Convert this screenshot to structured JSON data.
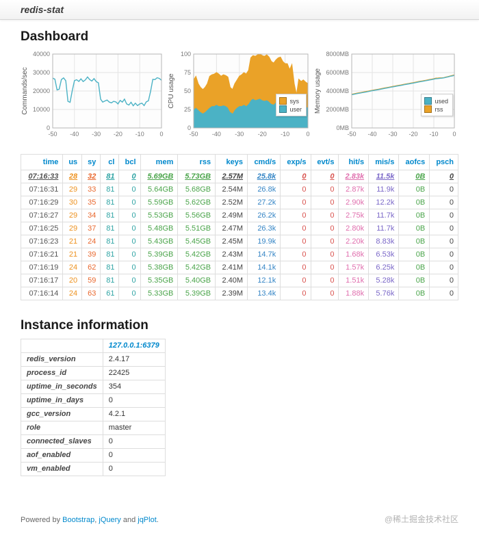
{
  "navbar": {
    "brand": "redis-stat"
  },
  "sections": {
    "dashboard_title": "Dashboard",
    "instance_title": "Instance information"
  },
  "chart_data": [
    {
      "type": "line",
      "ylabel": "Commands/sec",
      "xlim": [
        -50,
        0
      ],
      "ylim": [
        0,
        40000
      ],
      "x_ticks": [
        -50,
        -40,
        -30,
        -20,
        -10,
        0
      ],
      "y_ticks": [
        0,
        10000,
        20000,
        30000,
        40000
      ],
      "y_suffix": "",
      "grid": true,
      "series": [
        {
          "name": "cmd/s",
          "color": "#4bb2c5",
          "values": [
            27000,
            26400,
            20600,
            21000,
            26200,
            27100,
            25600,
            14400,
            13900,
            20200,
            25600,
            26100,
            25200,
            26600,
            25100,
            26000,
            27600,
            26200,
            25400,
            26700,
            25100,
            24400,
            15600,
            14000,
            14600,
            15100,
            14000,
            13600,
            14400,
            14100,
            13000,
            14900,
            14000,
            15600,
            13000,
            12400,
            13900,
            12000,
            13400,
            12100,
            13000,
            13400,
            12100,
            14100,
            14700,
            19900,
            26300,
            26200,
            27200,
            26800,
            25800
          ]
        }
      ]
    },
    {
      "type": "stacked-area",
      "ylabel": "CPU usage",
      "xlim": [
        -50,
        0
      ],
      "ylim": [
        0,
        100
      ],
      "x_ticks": [
        -50,
        -40,
        -30,
        -20,
        -10,
        0
      ],
      "y_ticks": [
        0,
        25,
        50,
        75,
        100
      ],
      "y_suffix": "",
      "grid": true,
      "series": [
        {
          "name": "user",
          "color": "#4bb2c5",
          "values": [
            25,
            28,
            25,
            22,
            20,
            22,
            25,
            28,
            30,
            30,
            32,
            30,
            30,
            31,
            30,
            28,
            22,
            20,
            25,
            28,
            30,
            30,
            32,
            30,
            33,
            38,
            40,
            38,
            39,
            40,
            38,
            37,
            38,
            36,
            33,
            32,
            35,
            36,
            35,
            32,
            24,
            24,
            20,
            24,
            21,
            21,
            29,
            29,
            30,
            29,
            28
          ]
        },
        {
          "name": "sys",
          "color": "#eaa228",
          "values": [
            40,
            42,
            35,
            33,
            32,
            33,
            35,
            42,
            42,
            43,
            43,
            43,
            40,
            41,
            41,
            41,
            33,
            32,
            35,
            37,
            40,
            42,
            43,
            43,
            45,
            57,
            58,
            59,
            60,
            60,
            60,
            60,
            61,
            60,
            57,
            56,
            57,
            59,
            61,
            58,
            63,
            63,
            59,
            62,
            39,
            24,
            37,
            34,
            35,
            33,
            32
          ]
        }
      ],
      "legend": {
        "position": "right",
        "entries": [
          {
            "label": "sys",
            "color": "#eaa228"
          },
          {
            "label": "user",
            "color": "#4bb2c5"
          }
        ]
      }
    },
    {
      "type": "line",
      "ylabel": "Memory usage",
      "xlim": [
        -50,
        0
      ],
      "ylim": [
        0,
        8000
      ],
      "x_ticks": [
        -50,
        -40,
        -30,
        -20,
        -10,
        0
      ],
      "y_ticks": [
        0,
        2000,
        4000,
        6000,
        8000
      ],
      "y_suffix": "MB",
      "grid": true,
      "series": [
        {
          "name": "rss",
          "color": "#eaa228",
          "values": [
            3645,
            3690,
            3735,
            3775,
            3815,
            3860,
            3905,
            3945,
            3985,
            4030,
            4075,
            4115,
            4155,
            4195,
            4240,
            4285,
            4325,
            4365,
            4405,
            4450,
            4495,
            4535,
            4575,
            4615,
            4655,
            4700,
            4745,
            4785,
            4825,
            4865,
            4905,
            4950,
            4995,
            5035,
            5075,
            5115,
            5155,
            5200,
            5245,
            5285,
            5325,
            5390,
            5400,
            5420,
            5420,
            5450,
            5510,
            5560,
            5620,
            5680,
            5730
          ]
        },
        {
          "name": "used",
          "color": "#4bb2c5",
          "values": [
            3600,
            3645,
            3690,
            3730,
            3770,
            3815,
            3860,
            3900,
            3940,
            3985,
            4030,
            4070,
            4110,
            4150,
            4195,
            4240,
            4280,
            4320,
            4360,
            4405,
            4450,
            4490,
            4530,
            4570,
            4610,
            4655,
            4700,
            4740,
            4780,
            4820,
            4860,
            4905,
            4950,
            4990,
            5030,
            5070,
            5110,
            5155,
            5200,
            5240,
            5280,
            5330,
            5350,
            5380,
            5390,
            5430,
            5480,
            5530,
            5590,
            5640,
            5690
          ]
        }
      ],
      "legend": {
        "position": "right",
        "entries": [
          {
            "label": "used",
            "color": "#4bb2c5"
          },
          {
            "label": "rss",
            "color": "#eaa228"
          }
        ]
      }
    }
  ],
  "stats_table": {
    "header_color": "#0088cc",
    "columns": [
      {
        "label": "time",
        "color": "#555555"
      },
      {
        "label": "us",
        "color": "#ed9220"
      },
      {
        "label": "sy",
        "color": "#e9682e"
      },
      {
        "label": "cl",
        "color": "#2fa4a4"
      },
      {
        "label": "bcl",
        "color": "#2fa4a4"
      },
      {
        "label": "mem",
        "color": "#4aa44a"
      },
      {
        "label": "rss",
        "color": "#4aa44a"
      },
      {
        "label": "keys",
        "color": "#444444"
      },
      {
        "label": "cmd/s",
        "color": "#3585c5"
      },
      {
        "label": "exp/s",
        "color": "#d9534f"
      },
      {
        "label": "evt/s",
        "color": "#d9534f"
      },
      {
        "label": "hit/s",
        "color": "#e06fae"
      },
      {
        "label": "mis/s",
        "color": "#7b68c8"
      },
      {
        "label": "aofcs",
        "color": "#4aa44a"
      },
      {
        "label": "psch",
        "color": "#444444"
      }
    ],
    "rows": [
      [
        "07:16:33",
        "28",
        "32",
        "81",
        "0",
        "5.69GB",
        "5.73GB",
        "2.57M",
        "25.8k",
        "0",
        "0",
        "2.83k",
        "11.5k",
        "0B",
        "0"
      ],
      [
        "07:16:31",
        "29",
        "33",
        "81",
        "0",
        "5.64GB",
        "5.68GB",
        "2.54M",
        "26.8k",
        "0",
        "0",
        "2.87k",
        "11.9k",
        "0B",
        "0"
      ],
      [
        "07:16:29",
        "30",
        "35",
        "81",
        "0",
        "5.59GB",
        "5.62GB",
        "2.52M",
        "27.2k",
        "0",
        "0",
        "2.90k",
        "12.2k",
        "0B",
        "0"
      ],
      [
        "07:16:27",
        "29",
        "34",
        "81",
        "0",
        "5.53GB",
        "5.56GB",
        "2.49M",
        "26.2k",
        "0",
        "0",
        "2.75k",
        "11.7k",
        "0B",
        "0"
      ],
      [
        "07:16:25",
        "29",
        "37",
        "81",
        "0",
        "5.48GB",
        "5.51GB",
        "2.47M",
        "26.3k",
        "0",
        "0",
        "2.80k",
        "11.7k",
        "0B",
        "0"
      ],
      [
        "07:16:23",
        "21",
        "24",
        "81",
        "0",
        "5.43GB",
        "5.45GB",
        "2.45M",
        "19.9k",
        "0",
        "0",
        "2.20k",
        "8.83k",
        "0B",
        "0"
      ],
      [
        "07:16:21",
        "21",
        "39",
        "81",
        "0",
        "5.39GB",
        "5.42GB",
        "2.43M",
        "14.7k",
        "0",
        "0",
        "1.68k",
        "6.53k",
        "0B",
        "0"
      ],
      [
        "07:16:19",
        "24",
        "62",
        "81",
        "0",
        "5.38GB",
        "5.42GB",
        "2.41M",
        "14.1k",
        "0",
        "0",
        "1.57k",
        "6.25k",
        "0B",
        "0"
      ],
      [
        "07:16:17",
        "20",
        "59",
        "81",
        "0",
        "5.35GB",
        "5.40GB",
        "2.40M",
        "12.1k",
        "0",
        "0",
        "1.51k",
        "5.28k",
        "0B",
        "0"
      ],
      [
        "07:16:14",
        "24",
        "63",
        "61",
        "0",
        "5.33GB",
        "5.39GB",
        "2.39M",
        "13.4k",
        "0",
        "0",
        "1.88k",
        "5.76k",
        "0B",
        "0"
      ]
    ]
  },
  "instance_table": {
    "header": "127.0.0.1:6379",
    "rows": [
      {
        "label": "redis_version",
        "value": "2.4.17"
      },
      {
        "label": "process_id",
        "value": "22425"
      },
      {
        "label": "uptime_in_seconds",
        "value": "354"
      },
      {
        "label": "uptime_in_days",
        "value": "0"
      },
      {
        "label": "gcc_version",
        "value": "4.2.1"
      },
      {
        "label": "role",
        "value": "master"
      },
      {
        "label": "connected_slaves",
        "value": "0"
      },
      {
        "label": "aof_enabled",
        "value": "0"
      },
      {
        "label": "vm_enabled",
        "value": "0"
      }
    ]
  },
  "footer": {
    "powered_by": "Powered by ",
    "bootstrap": "Bootstrap",
    "comma": ", ",
    "jquery": "jQuery",
    "and": " and ",
    "jqplot": "jqPlot",
    "period": ".",
    "watermark": "@稀土掘金技术社区"
  }
}
